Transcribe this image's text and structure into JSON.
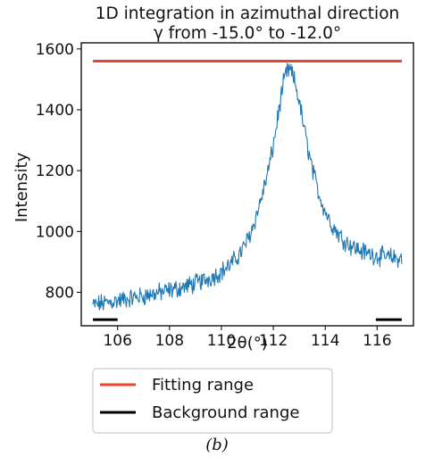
{
  "figure": {
    "panel_label": "(b)"
  },
  "colors": {
    "intensity_line": "#1f77b4",
    "fitting_range": "#e8452c",
    "background_range": "#000000",
    "axes": "#000000",
    "legend_border": "#cccccc"
  },
  "chart_data": {
    "type": "line",
    "title": "1D integration in azimuthal direction",
    "subtitle": "γ from -15.0° to -12.0°",
    "xlabel": "2θ(°)",
    "ylabel": "Intensity",
    "xlim": [
      104.6,
      117.4
    ],
    "ylim": [
      690,
      1620
    ],
    "xticks": [
      106,
      108,
      110,
      112,
      114,
      116
    ],
    "yticks": [
      800,
      1000,
      1200,
      1400,
      1600
    ],
    "grid": false,
    "series": [
      {
        "shape": "noisy peak profile",
        "x_range": [
          105.05,
          116.95
        ],
        "point_count": 481,
        "peak_center": 112.6,
        "peak_max": 1545,
        "approx_baseline_left": 750,
        "approx_baseline_right": 880,
        "noise_amplitude": 25
      }
    ],
    "fitting_range": {
      "name": "Fitting range",
      "x": [
        105.05,
        116.95
      ],
      "y": 1560
    },
    "background_range": {
      "name": "Background range",
      "segments": [
        [
          105.05,
          106.0
        ],
        [
          115.95,
          116.95
        ]
      ],
      "y": 710
    },
    "legend": {
      "entries": [
        "Fitting range",
        "Background range"
      ],
      "placement": "below plot"
    }
  }
}
